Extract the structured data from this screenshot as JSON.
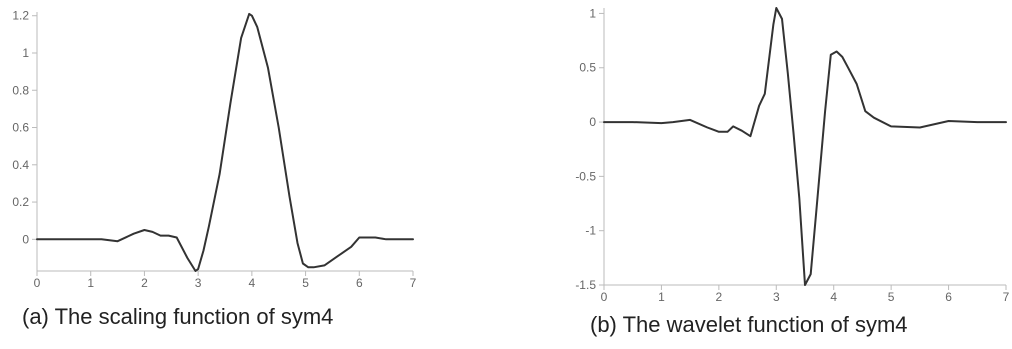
{
  "colors": {
    "line": "#333333",
    "axis": "#bbbbbb",
    "tick_text": "#666666"
  },
  "captions": {
    "a": "(a) The scaling function of sym4",
    "b": "(b) The wavelet function of sym4"
  },
  "chart_data": [
    {
      "type": "line",
      "title": "",
      "xlabel": "",
      "ylabel": "",
      "xlim": [
        0,
        7
      ],
      "ylim": [
        -0.17,
        1.22
      ],
      "grid": false,
      "x_ticks": [
        "0",
        "1",
        "2",
        "3",
        "4",
        "5",
        "6",
        "7"
      ],
      "y_ticks": [
        "0",
        "0.2",
        "0.4",
        "0.6",
        "0.8",
        "1",
        "1.2"
      ],
      "series": [
        {
          "x": [
            0,
            0.5,
            1.0,
            1.2,
            1.5,
            1.8,
            2.0,
            2.15,
            2.3,
            2.45,
            2.6,
            2.8,
            2.95,
            3.0,
            3.1,
            3.2,
            3.4,
            3.6,
            3.8,
            3.95,
            4.0,
            4.1,
            4.3,
            4.5,
            4.7,
            4.85,
            4.95,
            5.05,
            5.15,
            5.35,
            5.6,
            5.85,
            6.0,
            6.3,
            6.5,
            7.0
          ],
          "y": [
            0,
            0,
            0,
            0,
            -0.01,
            0.03,
            0.05,
            0.04,
            0.02,
            0.02,
            0.01,
            -0.1,
            -0.17,
            -0.16,
            -0.06,
            0.07,
            0.35,
            0.73,
            1.08,
            1.21,
            1.2,
            1.14,
            0.92,
            0.6,
            0.23,
            -0.02,
            -0.13,
            -0.15,
            -0.15,
            -0.14,
            -0.09,
            -0.04,
            0.01,
            0.01,
            0,
            0
          ]
        }
      ]
    },
    {
      "type": "line",
      "title": "",
      "xlabel": "",
      "ylabel": "",
      "xlim": [
        0,
        7
      ],
      "ylim": [
        -1.5,
        1.05
      ],
      "grid": false,
      "x_ticks": [
        "0",
        "1",
        "2",
        "3",
        "4",
        "5",
        "6",
        "7"
      ],
      "y_ticks": [
        "-1.5",
        "-1",
        "-0.5",
        "0",
        "0.5",
        "1"
      ],
      "series": [
        {
          "x": [
            0,
            0.5,
            1.0,
            1.2,
            1.5,
            1.8,
            2.0,
            2.15,
            2.25,
            2.4,
            2.55,
            2.7,
            2.8,
            2.95,
            3.0,
            3.1,
            3.2,
            3.3,
            3.4,
            3.5,
            3.6,
            3.7,
            3.85,
            3.95,
            4.05,
            4.15,
            4.25,
            4.4,
            4.55,
            4.7,
            5.0,
            5.5,
            6.0,
            6.5,
            7.0
          ],
          "y": [
            0,
            0,
            -0.01,
            0,
            0.02,
            -0.05,
            -0.09,
            -0.09,
            -0.04,
            -0.08,
            -0.13,
            0.15,
            0.26,
            0.9,
            1.05,
            0.95,
            0.45,
            -0.1,
            -0.7,
            -1.5,
            -1.4,
            -0.8,
            0.1,
            0.62,
            0.65,
            0.6,
            0.5,
            0.35,
            0.1,
            0.04,
            -0.04,
            -0.05,
            0.01,
            0,
            0
          ]
        }
      ]
    }
  ]
}
